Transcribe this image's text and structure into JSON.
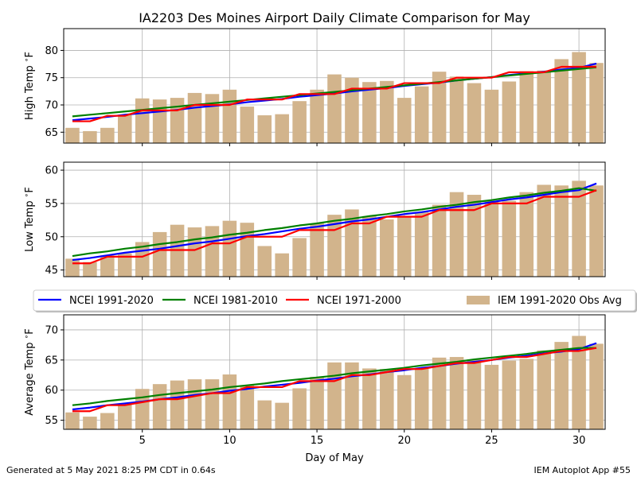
{
  "figure": {
    "title": "IA2203 Des Moines Airport Daily Climate Comparison for May",
    "footer_left": "Generated at 5 May 2021 8:25 PM CDT in 0.64s",
    "footer_right": "IEM Autoplot App #55"
  },
  "legend": [
    {
      "name": "NCEI 1991-2020",
      "color": "#0000ff",
      "kind": "line"
    },
    {
      "name": "NCEI 1981-2010",
      "color": "#008000",
      "kind": "line"
    },
    {
      "name": "NCEI 1971-2000",
      "color": "#ff0000",
      "kind": "line"
    },
    {
      "name": "IEM 1991-2020 Obs Avg",
      "color": "#d2b48c",
      "kind": "bar"
    }
  ],
  "chart_data": [
    {
      "type": "bar",
      "ylabel": "High Temp $^\\circ$F",
      "ylabel_text": "High Temp ",
      "xlim": [
        0.5,
        31.5
      ],
      "ylim": [
        63,
        84
      ],
      "yticks": [
        65,
        70,
        75,
        80
      ],
      "xticks": [
        5,
        10,
        15,
        20,
        25,
        30
      ],
      "grid": true,
      "x": [
        1,
        2,
        3,
        4,
        5,
        6,
        7,
        8,
        9,
        10,
        11,
        12,
        13,
        14,
        15,
        16,
        17,
        18,
        19,
        20,
        21,
        22,
        23,
        24,
        25,
        26,
        27,
        28,
        29,
        30,
        31
      ],
      "bars": [
        65.8,
        65.2,
        65.8,
        68.2,
        71.2,
        71.0,
        71.3,
        72.2,
        72.0,
        72.8,
        69.7,
        68.1,
        68.3,
        70.7,
        72.8,
        75.6,
        75.0,
        74.2,
        74.4,
        71.3,
        73.4,
        76.1,
        75.2,
        74.0,
        72.8,
        74.3,
        76.2,
        76.3,
        78.4,
        79.7,
        77.7
      ],
      "series": [
        {
          "name": "NCEI 1991-2020",
          "values": [
            67.2,
            67.5,
            67.8,
            68.2,
            68.5,
            68.8,
            69.1,
            69.5,
            69.8,
            70.1,
            70.5,
            70.8,
            71.1,
            71.5,
            71.8,
            72.1,
            72.5,
            72.8,
            73.1,
            73.5,
            73.8,
            74.1,
            74.5,
            74.8,
            75.1,
            75.5,
            75.8,
            76.1,
            76.5,
            76.8,
            77.6
          ]
        },
        {
          "name": "NCEI 1981-2010",
          "values": [
            67.9,
            68.2,
            68.5,
            68.8,
            69.1,
            69.4,
            69.7,
            70.0,
            70.3,
            70.6,
            70.9,
            71.2,
            71.5,
            71.8,
            72.1,
            72.4,
            72.7,
            73.0,
            73.3,
            73.6,
            73.9,
            74.2,
            74.5,
            74.8,
            75.1,
            75.4,
            75.7,
            76.0,
            76.3,
            76.6,
            76.9
          ]
        },
        {
          "name": "NCEI 1971-2000",
          "values": [
            67,
            67,
            68,
            68,
            69,
            69,
            69,
            70,
            70,
            70,
            71,
            71,
            71,
            72,
            72,
            72,
            73,
            73,
            73,
            74,
            74,
            74,
            75,
            75,
            75,
            76,
            76,
            76,
            77,
            77,
            77
          ]
        }
      ]
    },
    {
      "type": "bar",
      "ylabel": "Low Temp $^\\circ$F",
      "ylabel_text": "Low Temp ",
      "xlim": [
        0.5,
        31.5
      ],
      "ylim": [
        44,
        61.2
      ],
      "yticks": [
        45,
        50,
        55,
        60
      ],
      "xticks": [
        5,
        10,
        15,
        20,
        25,
        30
      ],
      "grid": true,
      "x": [
        1,
        2,
        3,
        4,
        5,
        6,
        7,
        8,
        9,
        10,
        11,
        12,
        13,
        14,
        15,
        16,
        17,
        18,
        19,
        20,
        21,
        22,
        23,
        24,
        25,
        26,
        27,
        28,
        29,
        30,
        31
      ],
      "bars": [
        46.7,
        46.2,
        47.2,
        47.5,
        49.2,
        50.7,
        51.8,
        51.4,
        51.6,
        52.4,
        52.1,
        48.6,
        47.5,
        49.8,
        52.0,
        53.3,
        54.1,
        53.1,
        52.6,
        53.1,
        53.7,
        54.8,
        56.7,
        56.3,
        55.4,
        55.4,
        56.7,
        57.8,
        57.7,
        58.4,
        57.7
      ],
      "series": [
        {
          "name": "NCEI 1991-2020",
          "values": [
            46.5,
            46.8,
            47.2,
            47.6,
            47.9,
            48.2,
            48.6,
            49.0,
            49.3,
            49.7,
            50.1,
            50.4,
            50.8,
            51.2,
            51.5,
            51.9,
            52.3,
            52.6,
            53.0,
            53.4,
            53.7,
            54.1,
            54.5,
            54.8,
            55.2,
            55.6,
            55.9,
            56.3,
            56.7,
            57.0,
            58.0
          ]
        },
        {
          "name": "NCEI 1981-2010",
          "values": [
            47.1,
            47.5,
            47.8,
            48.2,
            48.5,
            48.9,
            49.2,
            49.6,
            49.9,
            50.3,
            50.6,
            51.0,
            51.3,
            51.7,
            52.0,
            52.4,
            52.7,
            53.1,
            53.4,
            53.8,
            54.1,
            54.5,
            54.8,
            55.2,
            55.5,
            55.9,
            56.2,
            56.6,
            56.9,
            57.3,
            56.9
          ]
        },
        {
          "name": "NCEI 1971-2000",
          "values": [
            46,
            46,
            47,
            47,
            47,
            48,
            48,
            48,
            49,
            49,
            50,
            50,
            50,
            51,
            51,
            51,
            52,
            52,
            53,
            53,
            53,
            54,
            54,
            54,
            55,
            55,
            55,
            56,
            56,
            56,
            57
          ]
        }
      ]
    },
    {
      "type": "bar",
      "ylabel": "Average Temp $^\\circ$F",
      "ylabel_text": "Average Temp ",
      "xlabel": "Day of May",
      "xlim": [
        0.5,
        31.5
      ],
      "ylim": [
        53.5,
        72.5
      ],
      "yticks": [
        55,
        60,
        65,
        70
      ],
      "xticks": [
        5,
        10,
        15,
        20,
        25,
        30
      ],
      "grid": true,
      "x": [
        1,
        2,
        3,
        4,
        5,
        6,
        7,
        8,
        9,
        10,
        11,
        12,
        13,
        14,
        15,
        16,
        17,
        18,
        19,
        20,
        21,
        22,
        23,
        24,
        25,
        26,
        27,
        28,
        29,
        30,
        31
      ],
      "bars": [
        56.3,
        55.6,
        56.2,
        57.6,
        60.2,
        61.0,
        61.6,
        61.8,
        61.8,
        62.6,
        60.8,
        58.3,
        57.9,
        60.3,
        62.2,
        64.6,
        64.6,
        63.6,
        63.5,
        62.5,
        63.6,
        65.4,
        65.5,
        65.1,
        64.2,
        64.9,
        65.2,
        66.6,
        68.0,
        69.0,
        67.7
      ],
      "series": [
        {
          "name": "NCEI 1991-2020",
          "values": [
            56.8,
            57.1,
            57.5,
            57.8,
            58.1,
            58.5,
            58.8,
            59.2,
            59.5,
            59.9,
            60.2,
            60.6,
            60.9,
            61.2,
            61.6,
            61.9,
            62.3,
            62.6,
            63.0,
            63.3,
            63.7,
            64.0,
            64.4,
            64.7,
            65.0,
            65.4,
            65.7,
            66.1,
            66.4,
            66.8,
            67.8
          ]
        },
        {
          "name": "NCEI 1981-2010",
          "values": [
            57.5,
            57.8,
            58.2,
            58.5,
            58.8,
            59.2,
            59.5,
            59.8,
            60.1,
            60.5,
            60.8,
            61.1,
            61.5,
            61.8,
            62.1,
            62.4,
            62.8,
            63.1,
            63.4,
            63.7,
            64.1,
            64.4,
            64.7,
            65.1,
            65.4,
            65.7,
            66.0,
            66.4,
            66.7,
            67.0,
            67.0
          ]
        },
        {
          "name": "NCEI 1971-2000",
          "values": [
            56.5,
            56.5,
            57.5,
            57.5,
            58.0,
            58.5,
            58.5,
            59.0,
            59.5,
            59.5,
            60.5,
            60.5,
            60.5,
            61.5,
            61.5,
            61.5,
            62.5,
            62.5,
            63.0,
            63.5,
            63.5,
            64.0,
            64.5,
            64.5,
            65.0,
            65.5,
            65.5,
            66.0,
            66.5,
            66.5,
            67.0
          ]
        }
      ]
    }
  ]
}
